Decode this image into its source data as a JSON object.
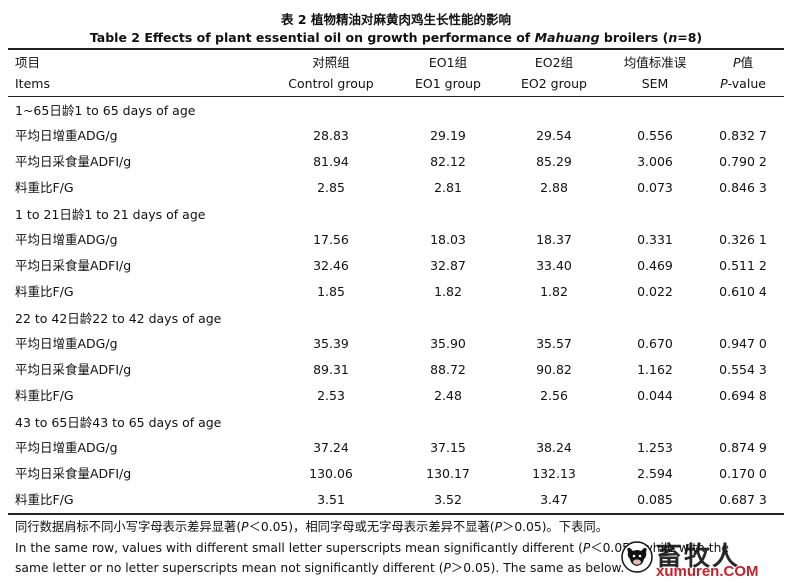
{
  "title_cn": "表 2 植物精油对麻黄肉鸡生长性能的影响",
  "title_en_prefix": "Table 2 Effects of plant essential oil on growth performance of ",
  "title_en_italic": "Mahuang",
  "title_en_mid": " broilers (",
  "title_en_n": "n",
  "title_en_suffix": "=8)",
  "headers": {
    "item_cn": "项目",
    "item_en": "Items",
    "control_cn": "对照组",
    "control_en": "Control group",
    "eo1_cn": "EO1组",
    "eo1_en": "EO1 group",
    "eo2_cn": "EO2组",
    "eo2_en": "EO2 group",
    "sem_cn": "均值标准误",
    "sem_en": "SEM",
    "p_cn_italic": "P",
    "p_cn": "值",
    "p_en_italic": "P",
    "p_en": "-value"
  },
  "sections": [
    {
      "label": "1~65日龄1 to 65 days of age",
      "rows": [
        {
          "item": "平均日增重ADG/g",
          "control": "28.83",
          "eo1": "29.19",
          "eo2": "29.54",
          "sem": "0.556",
          "p": "0.832 7"
        },
        {
          "item": "平均日采食量ADFI/g",
          "control": "81.94",
          "eo1": "82.12",
          "eo2": "85.29",
          "sem": "3.006",
          "p": "0.790 2"
        },
        {
          "item": "料重比F/G",
          "control": "2.85",
          "eo1": "2.81",
          "eo2": "2.88",
          "sem": "0.073",
          "p": "0.846 3"
        }
      ]
    },
    {
      "label": "1 to 21日龄1 to 21 days of age",
      "rows": [
        {
          "item": "平均日增重ADG/g",
          "control": "17.56",
          "eo1": "18.03",
          "eo2": "18.37",
          "sem": "0.331",
          "p": "0.326 1"
        },
        {
          "item": "平均日采食量ADFI/g",
          "control": "32.46",
          "eo1": "32.87",
          "eo2": "33.40",
          "sem": "0.469",
          "p": "0.511 2"
        },
        {
          "item": "料重比F/G",
          "control": "1.85",
          "eo1": "1.82",
          "eo2": "1.82",
          "sem": "0.022",
          "p": "0.610 4"
        }
      ]
    },
    {
      "label": "22 to 42日龄22 to 42 days of age",
      "rows": [
        {
          "item": "平均日增重ADG/g",
          "control": "35.39",
          "eo1": "35.90",
          "eo2": "35.57",
          "sem": "0.670",
          "p": "0.947 0"
        },
        {
          "item": "平均日采食量ADFI/g",
          "control": "89.31",
          "eo1": "88.72",
          "eo2": "90.82",
          "sem": "1.162",
          "p": "0.554 3"
        },
        {
          "item": "料重比F/G",
          "control": "2.53",
          "eo1": "2.48",
          "eo2": "2.56",
          "sem": "0.044",
          "p": "0.694 8"
        }
      ]
    },
    {
      "label": "43 to 65日龄43 to 65 days of age",
      "rows": [
        {
          "item": "平均日增重ADG/g",
          "control": "37.24",
          "eo1": "37.15",
          "eo2": "38.24",
          "sem": "1.253",
          "p": "0.874 9"
        },
        {
          "item": "平均日采食量ADFI/g",
          "control": "130.06",
          "eo1": "130.17",
          "eo2": "132.13",
          "sem": "2.594",
          "p": "0.170 0"
        },
        {
          "item": "料重比F/G",
          "control": "3.51",
          "eo1": "3.52",
          "eo2": "3.47",
          "sem": "0.085",
          "p": "0.687 3"
        }
      ]
    }
  ],
  "footnote": {
    "cn_a": "同行数据肩标不同小写字母表示差异显著(",
    "cn_p1": "P",
    "cn_b": "＜0.05)，相同字母或无字母表示差异不显著(",
    "cn_p2": "P",
    "cn_c": "＞0.05)。下表同。",
    "en1_a": "In the same row, values with different small letter superscripts mean significantly different (",
    "en1_p": "P",
    "en1_b": "＜0.05), while with the",
    "en2_a": "same letter or no letter superscripts mean not significantly different (",
    "en2_p": "P",
    "en2_b": "＞0.05). The same as below."
  },
  "watermark": {
    "cn": "畜牧人",
    "en": "xumuren.COM",
    "color": "#c8202a"
  }
}
